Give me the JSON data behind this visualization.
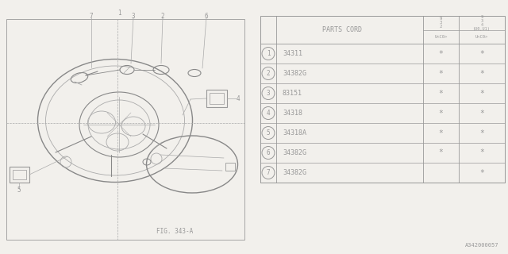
{
  "bg_color": "#f2f0ec",
  "line_color": "#999999",
  "text_color": "#999999",
  "fig_label": "FIG. 343-A",
  "doc_id": "A342000057",
  "table": {
    "rows": [
      {
        "num": "1",
        "part": "34311",
        "col2": "*",
        "col3": "*"
      },
      {
        "num": "2",
        "part": "34382G",
        "col2": "*",
        "col3": "*"
      },
      {
        "num": "3",
        "part": "83151",
        "col2": "*",
        "col3": "*"
      },
      {
        "num": "4",
        "part": "34318",
        "col2": "*",
        "col3": "*"
      },
      {
        "num": "5",
        "part": "34318A",
        "col2": "*",
        "col3": "*"
      },
      {
        "num": "6",
        "part": "34382G",
        "col2": "*",
        "col3": "*"
      },
      {
        "num": "7",
        "part": "34382G",
        "col2": "",
        "col3": "*"
      }
    ]
  }
}
